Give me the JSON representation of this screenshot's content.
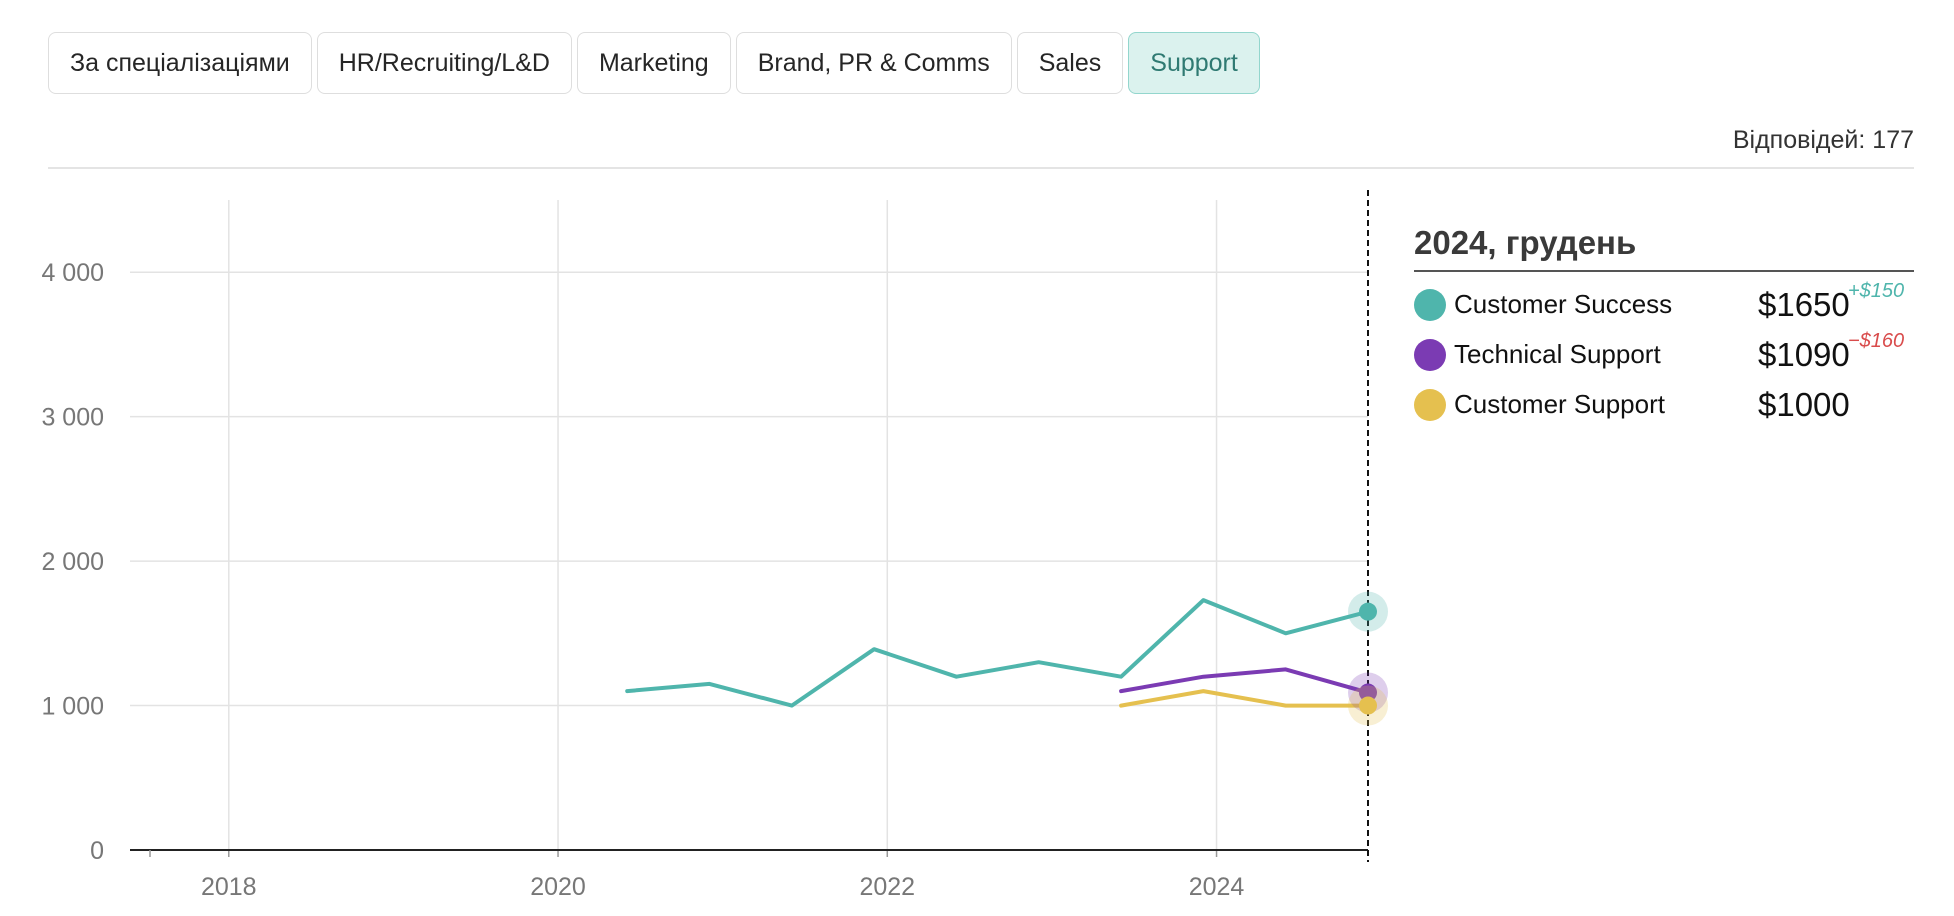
{
  "tabs": [
    {
      "label": "За спеціалізаціями",
      "active": false
    },
    {
      "label": "HR/Recruiting/L&D",
      "active": false
    },
    {
      "label": "Marketing",
      "active": false
    },
    {
      "label": "Brand, PR & Comms",
      "active": false
    },
    {
      "label": "Sales",
      "active": false
    },
    {
      "label": "Support",
      "active": true
    }
  ],
  "responses": "Відповідей: 177",
  "tooltip": {
    "title": "2024, грудень",
    "rows": [
      {
        "name": "Customer Success",
        "value": "$1650",
        "delta": "+$150",
        "delta_sign": "pos",
        "color": "#4fb5ac"
      },
      {
        "name": "Technical Support",
        "value": "$1090",
        "delta": "−$160",
        "delta_sign": "neg",
        "color": "#7b3bb3"
      },
      {
        "name": "Customer Support",
        "value": "$1000",
        "delta": "",
        "delta_sign": "",
        "color": "#e5c04f"
      }
    ]
  },
  "chart_data": {
    "type": "line",
    "title": "",
    "xlabel": "",
    "ylabel": "",
    "xlim": [
      2017.4,
      2024.92
    ],
    "ylim": [
      0,
      4500
    ],
    "yticks": [
      0,
      1000,
      2000,
      3000,
      4000
    ],
    "ytick_labels": [
      "0",
      "1 000",
      "2 000",
      "3 000",
      "4 000"
    ],
    "xticks": [
      2018,
      2020,
      2022,
      2024
    ],
    "xtick_labels": [
      "2018",
      "2020",
      "2022",
      "2024"
    ],
    "grid": true,
    "cursor_x": 2024.92,
    "series": [
      {
        "name": "Customer Success",
        "color": "#4fb5ac",
        "x": [
          2020.42,
          2020.92,
          2021.42,
          2021.92,
          2022.42,
          2022.92,
          2023.42,
          2023.92,
          2024.42,
          2024.92
        ],
        "y": [
          1100,
          1150,
          1000,
          1390,
          1200,
          1300,
          1200,
          1730,
          1500,
          1650
        ]
      },
      {
        "name": "Technical Support",
        "color": "#7b3bb3",
        "x": [
          2023.42,
          2023.92,
          2024.42,
          2024.92
        ],
        "y": [
          1100,
          1200,
          1250,
          1090
        ]
      },
      {
        "name": "Customer Support",
        "color": "#e5c04f",
        "x": [
          2023.42,
          2023.92,
          2024.42,
          2024.92
        ],
        "y": [
          1000,
          1100,
          1000,
          1000
        ]
      }
    ]
  }
}
